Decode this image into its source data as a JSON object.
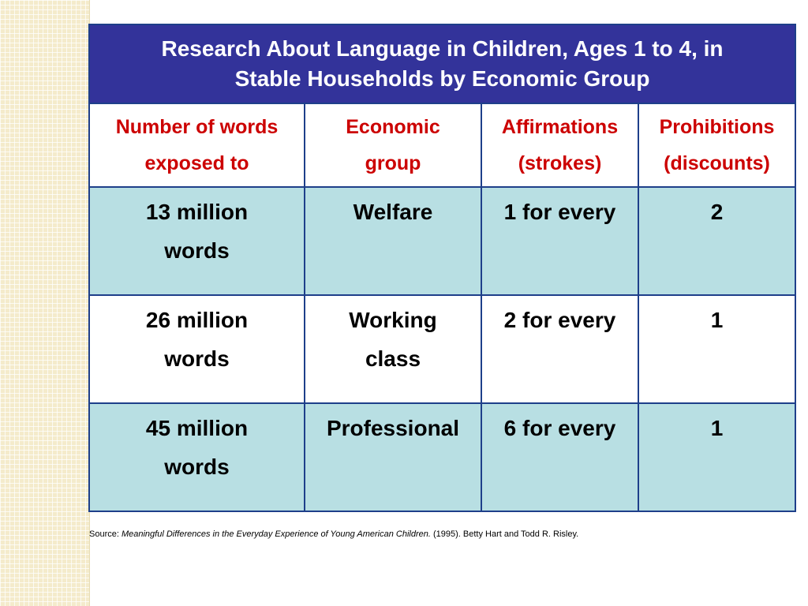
{
  "table": {
    "title": "Research About Language in Children, Ages 1 to 4, in Stable Households by Economic Group",
    "title_lines": [
      "Research About Language in Children, Ages 1 to 4, in",
      "Stable Households by Economic Group"
    ],
    "headers": [
      {
        "line1": "Number of words",
        "line2": "exposed to"
      },
      {
        "line1": "Economic",
        "line2": "group"
      },
      {
        "line1": "Affirmations",
        "line2": "(strokes)"
      },
      {
        "line1": "Prohibitions",
        "line2": "(discounts)"
      }
    ],
    "rows": [
      {
        "words": {
          "line1": "13 million",
          "line2": "words"
        },
        "group": {
          "line1": "Welfare",
          "line2": ""
        },
        "affirmations": "1 for every",
        "prohibitions": "2"
      },
      {
        "words": {
          "line1": "26 million",
          "line2": "words"
        },
        "group": {
          "line1": "Working",
          "line2": "class"
        },
        "affirmations": "2 for every",
        "prohibitions": "1"
      },
      {
        "words": {
          "line1": "45 million",
          "line2": "words"
        },
        "group": {
          "line1": "Professional",
          "line2": ""
        },
        "affirmations": "6 for every",
        "prohibitions": "1"
      }
    ]
  },
  "source": {
    "prefix": "Source: ",
    "work": "Meaningful Differences in the Everyday Experience of Young American Children.",
    "suffix": " (1995). Betty Hart and Todd R. Risley."
  },
  "colors": {
    "title_bg": "#33339a",
    "header_text": "#cc0000",
    "shaded_row": "#b8dfe3",
    "border": "#1e3f8a",
    "side_strip": "#f4ebcb"
  }
}
